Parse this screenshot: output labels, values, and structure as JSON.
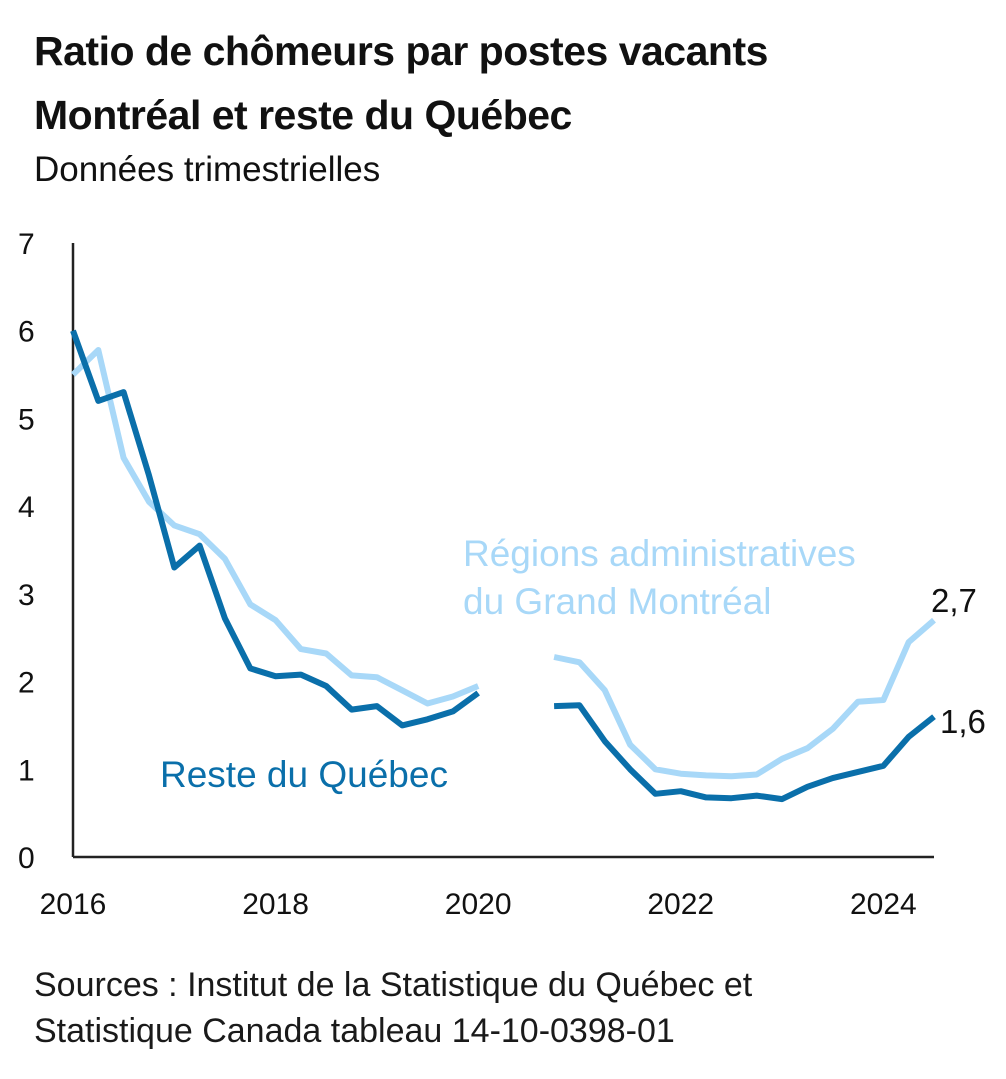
{
  "title_line1": "Ratio de chômeurs par postes vacants",
  "title_line2": "Montréal et reste du Québec",
  "subtitle": "Données trimestrielles",
  "source_line1": "Sources : Institut de la Statistique du Québec et",
  "source_line2": "Statistique Canada tableau 14-10-0398-01",
  "colors": {
    "montreal": "#a8d8f8",
    "reste": "#0a6faa",
    "axis": "#222222"
  },
  "chart_data": {
    "type": "line",
    "xlabel": "",
    "ylabel": "",
    "ylim": [
      0,
      7
    ],
    "xlim": [
      2016,
      2024.5
    ],
    "yticks": [
      "0",
      "1",
      "2",
      "3",
      "4",
      "5",
      "6",
      "7"
    ],
    "xticks": [
      "2016",
      "2018",
      "2020",
      "2022",
      "2024"
    ],
    "grid": false,
    "series": [
      {
        "name": "Régions administratives du Grand Montréal",
        "label_lines": [
          "Régions administratives",
          "du Grand Montréal"
        ],
        "end_label": "2,7",
        "x": [
          2016,
          2016.25,
          2016.5,
          2016.75,
          2017,
          2017.25,
          2017.5,
          2017.75,
          2018,
          2018.25,
          2018.5,
          2018.75,
          2019,
          2019.25,
          2019.5,
          2019.75,
          2020,
          null,
          2020.75,
          2021,
          2021.25,
          2021.5,
          2021.75,
          2022,
          2022.25,
          2022.5,
          2022.75,
          2023,
          2023.25,
          2023.5,
          2023.75,
          2024,
          2024.25,
          2024.5
        ],
        "y": [
          5.5,
          5.78,
          4.55,
          4.05,
          3.78,
          3.68,
          3.4,
          2.88,
          2.7,
          2.37,
          2.32,
          2.07,
          2.05,
          1.9,
          1.75,
          1.83,
          1.95,
          null,
          2.28,
          2.22,
          1.9,
          1.28,
          1.0,
          0.95,
          0.93,
          0.92,
          0.94,
          1.12,
          1.24,
          1.46,
          1.77,
          1.79,
          2.45,
          2.7
        ]
      },
      {
        "name": "Reste du Québec",
        "label_lines": [
          "Reste du Québec"
        ],
        "end_label": "1,6",
        "x": [
          2016,
          2016.25,
          2016.5,
          2016.75,
          2017,
          2017.25,
          2017.5,
          2017.75,
          2018,
          2018.25,
          2018.5,
          2018.75,
          2019,
          2019.25,
          2019.5,
          2019.75,
          2020,
          null,
          2020.75,
          2021,
          2021.25,
          2021.5,
          2021.75,
          2022,
          2022.25,
          2022.5,
          2022.75,
          2023,
          2023.25,
          2023.5,
          2023.75,
          2024,
          2024.25,
          2024.5
        ],
        "y": [
          6.0,
          5.2,
          5.3,
          4.35,
          3.3,
          3.55,
          2.72,
          2.15,
          2.06,
          2.08,
          1.95,
          1.68,
          1.72,
          1.5,
          1.57,
          1.66,
          1.87,
          null,
          1.72,
          1.73,
          1.32,
          1.0,
          0.72,
          0.75,
          0.68,
          0.67,
          0.7,
          0.66,
          0.8,
          0.9,
          0.97,
          1.04,
          1.37,
          1.6
        ]
      }
    ]
  }
}
